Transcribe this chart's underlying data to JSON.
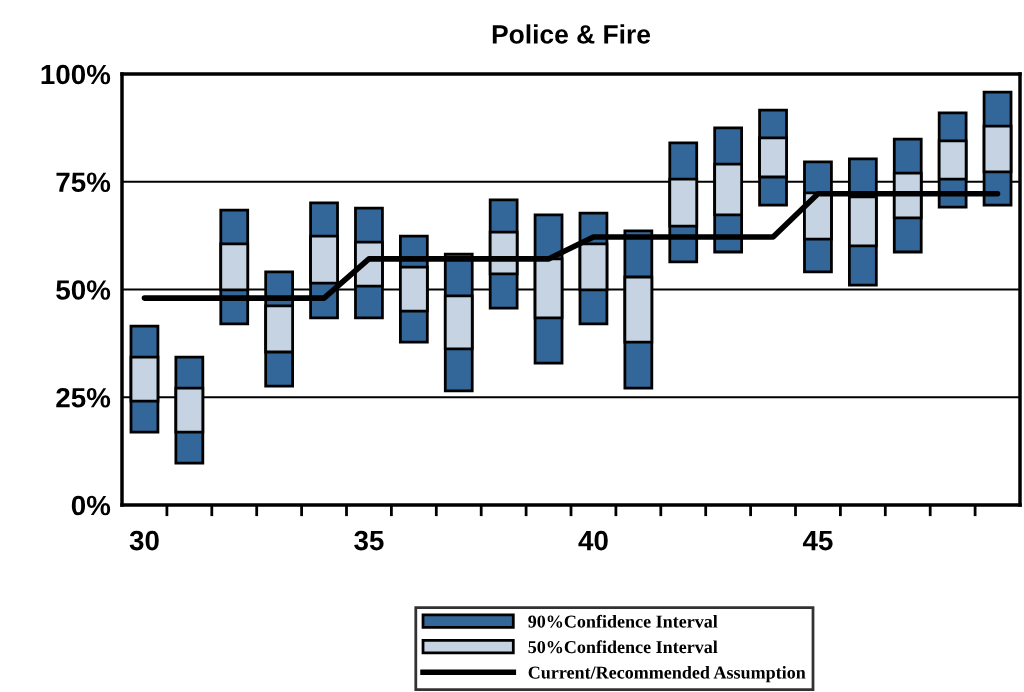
{
  "chart_data": {
    "type": "bar",
    "title": "Police & Fire",
    "categories": [
      "30",
      null,
      null,
      null,
      null,
      "35",
      null,
      null,
      null,
      null,
      "40",
      null,
      null,
      null,
      null,
      "45",
      null,
      null,
      null,
      null
    ],
    "series": [
      {
        "name": "90%Confidence Interval",
        "color": "#336699",
        "base": [
          16.9,
          9.7,
          42.0,
          27.6,
          43.4,
          43.4,
          37.8,
          26.5,
          45.7,
          32.9,
          42.0,
          27.1,
          56.4,
          58.7,
          69.6,
          54.1,
          51.0,
          58.7,
          69.1,
          69.6
        ],
        "values": [
          24.6,
          24.6,
          26.4,
          26.5,
          26.7,
          25.5,
          24.6,
          31.7,
          25.1,
          34.4,
          25.7,
          36.5,
          27.6,
          28.8,
          22.0,
          25.5,
          29.3,
          26.2,
          21.9,
          26.2
        ]
      },
      {
        "name": "50%Confidence Interval",
        "color": "#c5d3e2",
        "base": [
          24.1,
          16.9,
          49.9,
          35.5,
          51.5,
          50.8,
          45.0,
          36.2,
          53.6,
          43.4,
          49.9,
          37.8,
          64.7,
          67.3,
          76.1,
          61.7,
          60.1,
          66.6,
          75.6,
          77.3
        ],
        "values": [
          10.2,
          10.2,
          10.7,
          10.7,
          10.9,
          10.2,
          10.2,
          12.3,
          9.7,
          13.7,
          10.7,
          15.1,
          10.9,
          11.8,
          9.1,
          10.7,
          11.4,
          10.4,
          8.9,
          10.6
        ]
      },
      {
        "name": "Current/Recommended Assumption",
        "type": "line",
        "color": "#000000",
        "values": [
          48.0,
          48.0,
          48.0,
          48.0,
          48.0,
          57.1,
          57.1,
          57.1,
          57.1,
          57.1,
          62.2,
          62.2,
          62.2,
          62.2,
          62.2,
          72.2,
          72.2,
          72.2,
          72.2,
          72.2
        ]
      }
    ],
    "ylim": [
      0,
      100
    ],
    "yticks": [
      {
        "value": 0,
        "label": "0%"
      },
      {
        "value": 25,
        "label": "25%"
      },
      {
        "value": 50,
        "label": "50%"
      },
      {
        "value": 75,
        "label": "75%"
      },
      {
        "value": 100,
        "label": "100%"
      }
    ],
    "grid": "y",
    "legend": "bottom",
    "marker": "none",
    "line_style": "solid"
  }
}
